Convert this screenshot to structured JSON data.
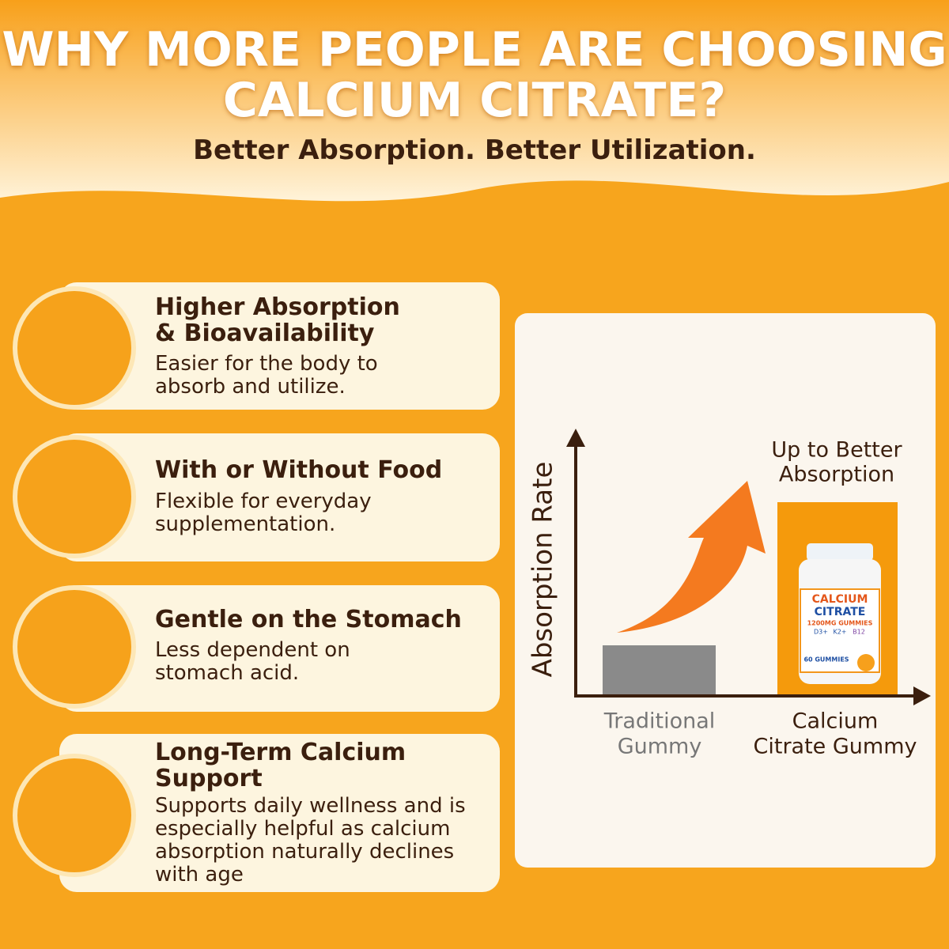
{
  "header": {
    "title_lines": [
      "WHY MORE PEOPLE ARE CHOOSING",
      "CALCIUM CITRATE?"
    ],
    "subtitle": "Better Absorption. Better Utilization."
  },
  "features": [
    {
      "title_lines": [
        "Higher Absorption",
        "& Bioavailability"
      ],
      "description_lines": [
        "Easier for the body to",
        "absorb and utilize."
      ]
    },
    {
      "title_lines": [
        "With or Without Food"
      ],
      "description_lines": [
        "Flexible for everyday",
        "supplementation."
      ]
    },
    {
      "title_lines": [
        "Gentle on the Stomach"
      ],
      "description_lines": [
        "Less dependent on",
        "stomach acid."
      ]
    },
    {
      "title_lines": [
        "Long-Term Calcium",
        "Support"
      ],
      "description_lines": [
        "Supports daily wellness and is",
        "especially helpful as calcium",
        "absorption naturally declines",
        "with age"
      ]
    }
  ],
  "comparison": {
    "y_axis_label": "Absorption Rate",
    "callout_lines": [
      "Up to Better",
      "Absorption"
    ],
    "categories": [
      [
        "Traditional",
        "Gummy"
      ],
      [
        "Calcium",
        "Citrate Gummy"
      ]
    ]
  },
  "product_label": {
    "name_lines": [
      "CALCIUM",
      "CITRATE"
    ],
    "dose": "1200MG GUMMIES",
    "extras": [
      "D3+",
      "K2+",
      "B12"
    ],
    "count": "60 GUMMIES"
  }
}
